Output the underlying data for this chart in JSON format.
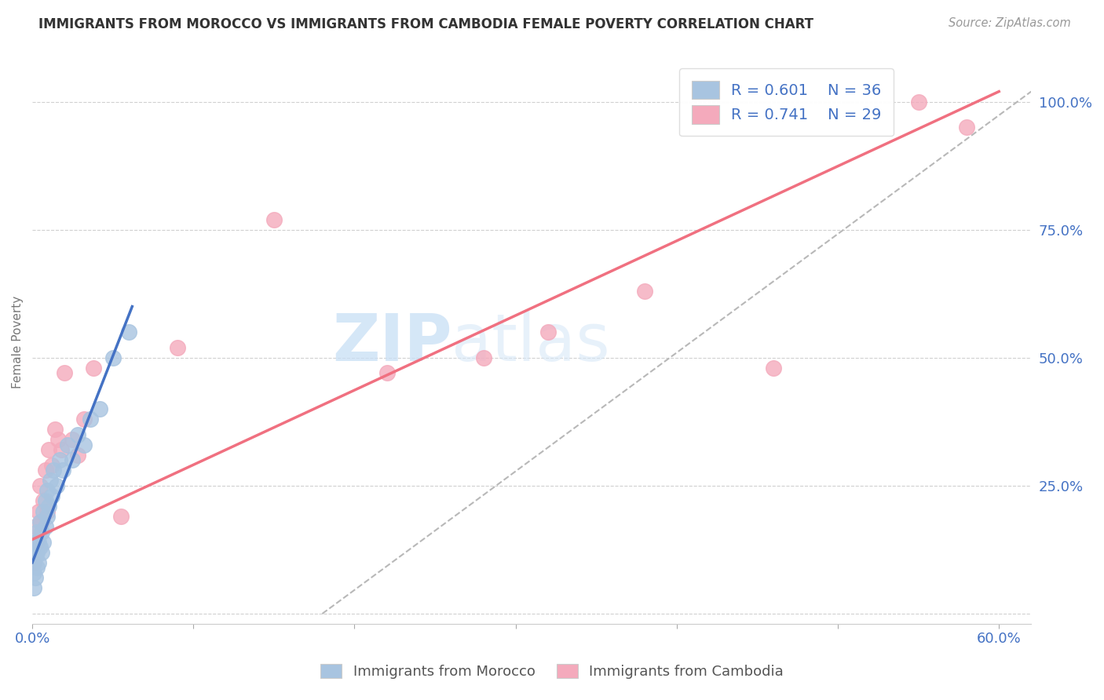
{
  "title": "IMMIGRANTS FROM MOROCCO VS IMMIGRANTS FROM CAMBODIA FEMALE POVERTY CORRELATION CHART",
  "source": "Source: ZipAtlas.com",
  "ylabel": "Female Poverty",
  "watermark": "ZIPatlas",
  "legend_r1": "R = 0.601",
  "legend_n1": "N = 36",
  "legend_r2": "R = 0.741",
  "legend_n2": "N = 29",
  "morocco_color": "#a8c4e0",
  "cambodia_color": "#f4aabc",
  "morocco_line_color": "#4472c4",
  "cambodia_line_color": "#f07080",
  "ref_line_color": "#b8b8b8",
  "morocco_x": [
    0.001,
    0.001,
    0.001,
    0.002,
    0.002,
    0.002,
    0.003,
    0.003,
    0.003,
    0.004,
    0.004,
    0.005,
    0.005,
    0.006,
    0.006,
    0.007,
    0.007,
    0.008,
    0.008,
    0.009,
    0.009,
    0.01,
    0.011,
    0.012,
    0.013,
    0.015,
    0.017,
    0.019,
    0.022,
    0.025,
    0.028,
    0.032,
    0.036,
    0.042,
    0.05,
    0.06
  ],
  "morocco_y": [
    0.05,
    0.08,
    0.1,
    0.07,
    0.11,
    0.14,
    0.09,
    0.12,
    0.16,
    0.1,
    0.14,
    0.13,
    0.18,
    0.12,
    0.16,
    0.14,
    0.2,
    0.17,
    0.22,
    0.19,
    0.24,
    0.21,
    0.26,
    0.23,
    0.28,
    0.25,
    0.3,
    0.28,
    0.33,
    0.3,
    0.35,
    0.33,
    0.38,
    0.4,
    0.5,
    0.55
  ],
  "cambodia_x": [
    0.001,
    0.002,
    0.003,
    0.004,
    0.005,
    0.006,
    0.007,
    0.008,
    0.009,
    0.01,
    0.012,
    0.014,
    0.016,
    0.018,
    0.02,
    0.025,
    0.028,
    0.032,
    0.038,
    0.055,
    0.09,
    0.15,
    0.22,
    0.28,
    0.32,
    0.38,
    0.46,
    0.55,
    0.58
  ],
  "cambodia_y": [
    0.1,
    0.17,
    0.14,
    0.2,
    0.25,
    0.18,
    0.22,
    0.28,
    0.2,
    0.32,
    0.29,
    0.36,
    0.34,
    0.32,
    0.47,
    0.34,
    0.31,
    0.38,
    0.48,
    0.19,
    0.52,
    0.77,
    0.47,
    0.5,
    0.55,
    0.63,
    0.48,
    1.0,
    0.95
  ],
  "xlim": [
    0.0,
    0.62
  ],
  "ylim": [
    -0.02,
    1.08
  ],
  "background_color": "#ffffff",
  "grid_color": "#d0d0d0",
  "morocco_line_x0": 0.0,
  "morocco_line_y0": 0.1,
  "morocco_line_x1": 0.062,
  "morocco_line_y1": 0.6,
  "cambodia_line_x0": 0.0,
  "cambodia_line_y0": 0.145,
  "cambodia_line_x1": 0.6,
  "cambodia_line_y1": 1.02,
  "ref_line_x0": 0.18,
  "ref_line_y0": 0.0,
  "ref_line_x1": 0.62,
  "ref_line_y1": 1.02
}
